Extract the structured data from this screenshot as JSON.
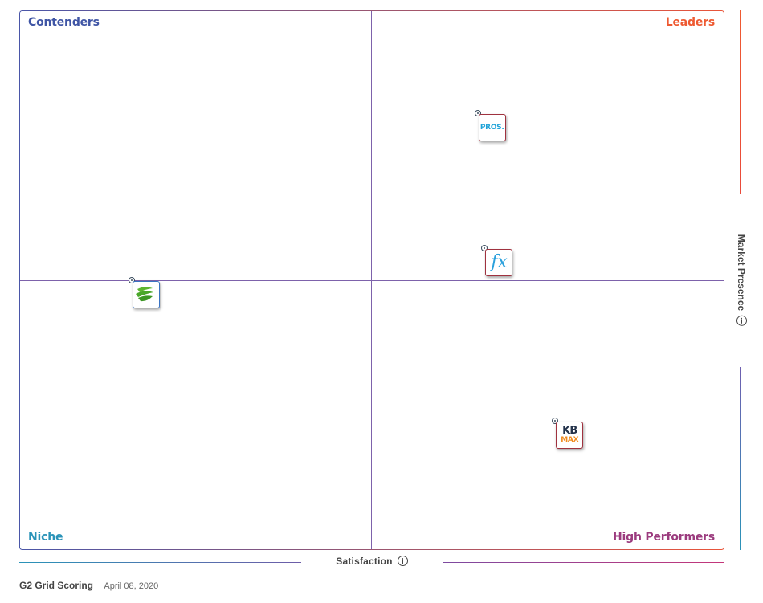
{
  "quadrants": {
    "top_left": "Contenders",
    "top_right": "Leaders",
    "bottom_left": "Niche",
    "bottom_right": "High Performers"
  },
  "chart_data": {
    "type": "scatter",
    "xlabel": "Satisfaction",
    "ylabel": "Market Presence",
    "xlim": [
      0,
      10
    ],
    "ylim": [
      0,
      10
    ],
    "grid": true,
    "points": [
      {
        "x": 6.5,
        "y": 8.1,
        "logo": "PROS."
      },
      {
        "x": 6.6,
        "y": 5.6,
        "logo": "fx"
      },
      {
        "x": 1.6,
        "y": 5.0,
        "logo": ""
      },
      {
        "x": 7.6,
        "y": 2.4,
        "logo": "KB MAX"
      }
    ]
  },
  "logos": {
    "pros": "PROS.",
    "fx": "fx",
    "kb": "KB",
    "max": "MAX"
  },
  "icons": {
    "leaf": "green-leaf-logo-icon",
    "info": "info-icon"
  },
  "colors": {
    "contenders": "#3f55a5",
    "leaders": "#ee5a32",
    "niche": "#2a93b8",
    "high_performers": "#9b3b7e"
  },
  "footer": {
    "title": "G2 Grid Scoring",
    "date": "April 08, 2020"
  }
}
